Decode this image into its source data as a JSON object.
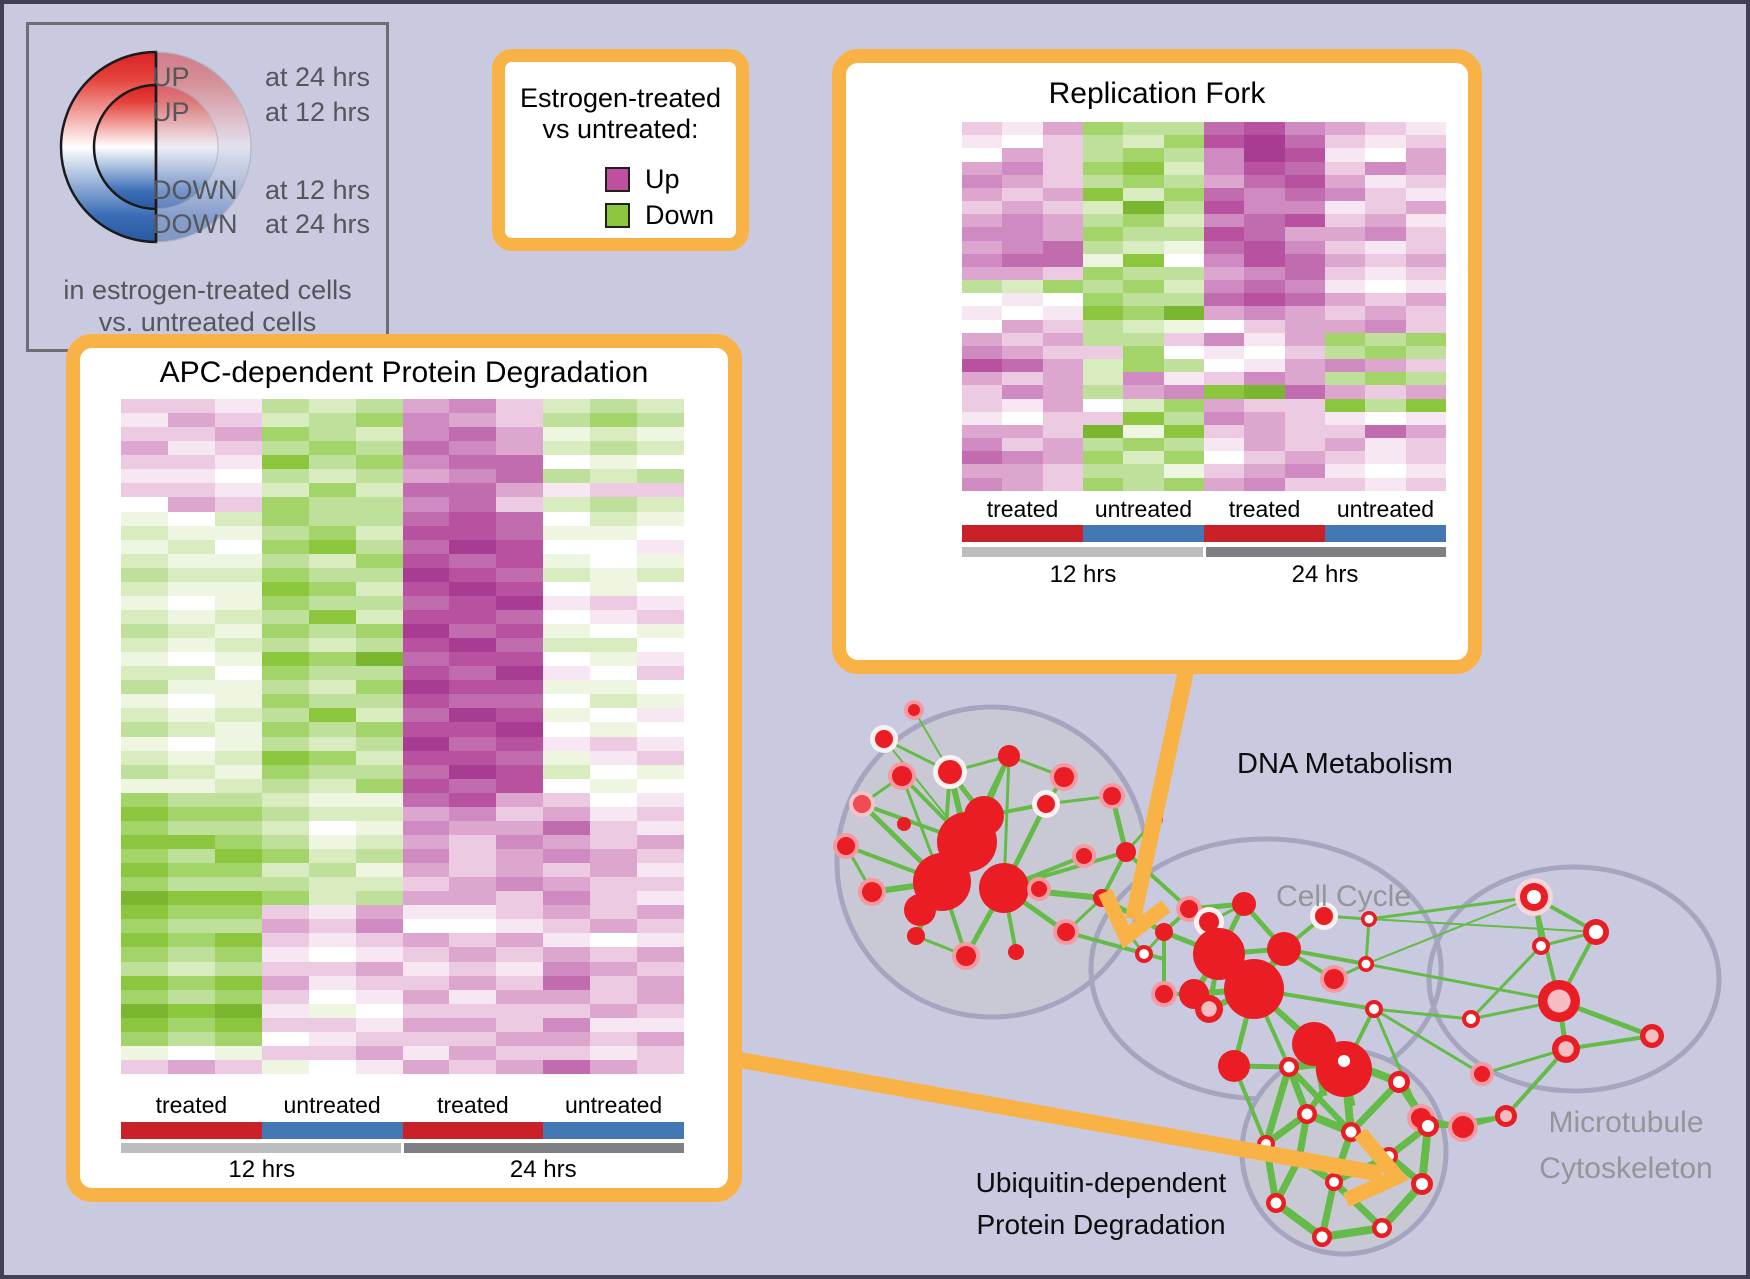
{
  "figure": {
    "background": "#c9cae0",
    "border_color": "#3f3f55"
  },
  "legend_updown": {
    "rows": [
      {
        "direction": "UP",
        "time": "at 24 hrs"
      },
      {
        "direction": "UP",
        "time": "at 12 hrs"
      },
      {
        "direction": "DOWN",
        "time": "at 12 hrs"
      },
      {
        "direction": "DOWN",
        "time": "at 24 hrs"
      }
    ],
    "footer_line1": "in estrogen-treated cells",
    "footer_line2": "vs. untreated cells",
    "up_color": "#dd2c26",
    "down_color": "#2f62ab"
  },
  "legend_estrogen": {
    "title_line1": "Estrogen-treated",
    "title_line2": "vs untreated:",
    "items": [
      {
        "label": "Up",
        "color": "#bf4f9f"
      },
      {
        "label": "Down",
        "color": "#8cc63e"
      }
    ]
  },
  "heatmap_palette": {
    "0": "#7ab62f",
    "1": "#8cc63e",
    "2": "#a3d469",
    "3": "#bfe09a",
    "4": "#d9ecc0",
    "5": "#eef6e2",
    "6": "#ffffff",
    "7": "#f6e7f2",
    "8": "#eccae2",
    "9": "#ddа6cf",
    "9f": "#dda6cf",
    "A": "#cf8bc1",
    "B": "#c06cae",
    "C": "#b8519f",
    "D": "#a83b92"
  },
  "heatmap_axis": {
    "conditions": [
      {
        "label": "treated",
        "color": "#c92127"
      },
      {
        "label": "untreated",
        "color": "#4478b4"
      },
      {
        "label": "treated",
        "color": "#c92127"
      },
      {
        "label": "untreated",
        "color": "#4478b4"
      }
    ],
    "times": [
      {
        "label": "12 hrs",
        "color": "#bbbdbf"
      },
      {
        "label": "24 hrs",
        "color": "#7e8083"
      }
    ]
  },
  "panels": {
    "replication_fork": {
      "title": "Replication Fork",
      "rows": [
        "879233BCA987",
        "768342CDB878",
        "698323ADC769",
        "9A8214ACB8A9",
        "A983239BC978",
        "989142BABA87",
        "898403CAA789",
        "9A9324ABC897",
        "AA9233CB99A8",
        "9AB345BCA878",
        "ABB516ACB989",
        "9982339AB878",
        "342324ABA767",
        "676233BCB989",
        "7671209A9898",
        "6983456899A8",
        "989338A79232",
        "A98826768323",
        "CB9423679A98",
        "9894A78A9323",
        "8A939A10B989",
        "879642988131",
        "768813A98767",
        "9980518988B9",
        "A89323798978",
        "BA9242689878",
        "99833589A767",
        "A982329A8878"
      ]
    },
    "apc": {
      "title": "APC-dependent Protein Degradation",
      "rows": [
        "8873439A8434",
        "798432A98323",
        "889234AB9545",
        "978323BA9434",
        "887132ABB656",
        "7763439AB343",
        "887424BB9788",
        "698233AB8434",
        "564233BCB645",
        "455324CCB556",
        "546213BDC667",
        "455342CBC565",
        "344233DCB454",
        "455124CDC656",
        "565233BCD787",
        "454314CCB678",
        "345232DBC565",
        "454343CDB446",
        "565120BCC657",
        "446233CBD768",
        "355342DCC556",
        "565233CBB645",
        "454314BDC567",
        "345232CCD656",
        "565343DBC787",
        "454124CCB578",
        "345233BDC465",
        "554342CBC656",
        "233455BC9867",
        "1223449A8978",
        "233465A99B87",
        "11235498A989",
        "231243A89A98",
        "122435989897",
        "23334489A988",
        "011243998A87",
        "122879778989",
        "23398A667898",
        "121878989767",
        "232767898989",
        "343889787A98",
        "121978898B89",
        "232867979989",
        "010756888898",
        "121887998A77",
        "232678889989",
        "565889798878",
        "898567989B98"
      ]
    }
  },
  "network_labels": {
    "dna": "DNA Metabolism",
    "cell_cycle": "Cell Cycle",
    "microtubule_line1": "Microtubule",
    "microtubule_line2": "Cytoskeleton",
    "ubiquitin_line1": "Ubiquitin-dependent",
    "ubiquitin_line2": "Protein Degradation"
  },
  "colors": {
    "accent_orange": "#f9b246",
    "node_red": "#ea1c24",
    "edge_green": "#65bb47",
    "cluster_fill": "#c9c9d5",
    "cluster_stroke": "#a5a5c0"
  }
}
